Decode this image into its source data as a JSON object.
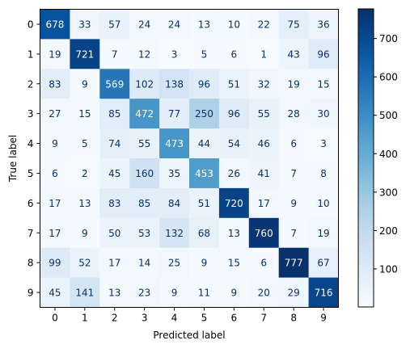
{
  "chart_data": {
    "type": "heatmap",
    "title": "",
    "xlabel": "Predicted label",
    "ylabel": "True label",
    "x_categories": [
      "0",
      "1",
      "2",
      "3",
      "4",
      "5",
      "6",
      "7",
      "8",
      "9"
    ],
    "y_categories": [
      "0",
      "1",
      "2",
      "3",
      "4",
      "5",
      "6",
      "7",
      "8",
      "9"
    ],
    "matrix": [
      [
        678,
        33,
        57,
        24,
        24,
        13,
        10,
        22,
        75,
        36
      ],
      [
        19,
        721,
        7,
        12,
        3,
        5,
        6,
        1,
        43,
        96
      ],
      [
        83,
        9,
        569,
        102,
        138,
        96,
        51,
        32,
        19,
        15
      ],
      [
        27,
        15,
        85,
        472,
        77,
        250,
        96,
        55,
        28,
        30
      ],
      [
        9,
        5,
        74,
        55,
        473,
        44,
        54,
        46,
        6,
        3
      ],
      [
        6,
        2,
        45,
        160,
        35,
        453,
        26,
        41,
        7,
        8
      ],
      [
        17,
        13,
        83,
        85,
        84,
        51,
        720,
        17,
        9,
        10
      ],
      [
        17,
        9,
        50,
        53,
        132,
        68,
        13,
        760,
        7,
        19
      ],
      [
        99,
        52,
        17,
        14,
        25,
        9,
        15,
        6,
        777,
        67
      ],
      [
        45,
        141,
        13,
        23,
        9,
        11,
        9,
        20,
        29,
        716
      ]
    ],
    "colormap": "Blues",
    "color_range": [
      1,
      777
    ],
    "colorbar_ticks": [
      100,
      200,
      300,
      400,
      500,
      600,
      700
    ],
    "colorbar_tick_labels": [
      "100",
      "200",
      "300",
      "400",
      "500",
      "600",
      "700"
    ],
    "text_color_dark": "#08306b",
    "text_color_light": "#ffffff",
    "grid": false
  }
}
